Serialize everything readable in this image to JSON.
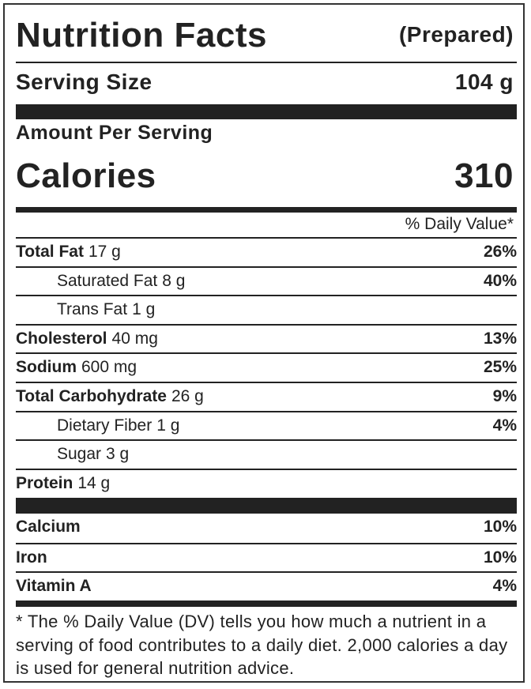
{
  "header": {
    "title": "Nutrition Facts",
    "note": "(Prepared)"
  },
  "serving": {
    "label": "Serving Size",
    "value": "104 g"
  },
  "amount_per_serving": "Amount Per Serving",
  "calories": {
    "label": "Calories",
    "value": "310"
  },
  "daily_value_header": "% Daily Value*",
  "nutrients": [
    {
      "name": "Total Fat",
      "amount": "17 g",
      "dv": "26%",
      "sub_items": [
        {
          "name": "Saturated Fat",
          "amount": "8 g",
          "dv": "40%"
        },
        {
          "name": "Trans Fat",
          "amount": "1 g"
        }
      ]
    },
    {
      "name": "Cholesterol",
      "amount": "40 mg",
      "dv": "13%"
    },
    {
      "name": "Sodium",
      "amount": "600 mg",
      "dv": "25%"
    },
    {
      "name": "Total Carbohydrate",
      "amount": "26 g",
      "dv": "9%",
      "sub_items": [
        {
          "name": "Dietary Fiber",
          "amount": "1 g",
          "dv": "4%"
        },
        {
          "name": "Sugar",
          "amount": "3 g"
        }
      ]
    },
    {
      "name": "Protein",
      "amount": "14 g"
    }
  ],
  "minerals": [
    {
      "name": "Calcium",
      "dv": "10%"
    },
    {
      "name": "Iron",
      "dv": "10%"
    },
    {
      "name": "Vitamin A",
      "dv": "4%"
    }
  ],
  "footnote": "* The % Daily Value (DV) tells you how much a nutrient in a serving of food contributes to a daily diet. 2,000 calories a day is used for general nutrition advice."
}
